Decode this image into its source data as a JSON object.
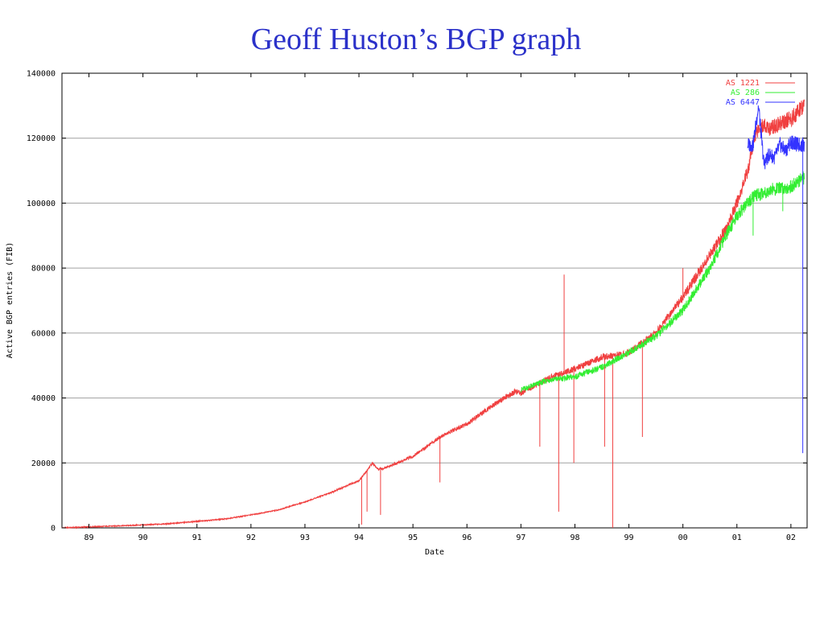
{
  "slide": {
    "title": "Geoff Huston’s BGP graph"
  },
  "colors": {
    "title": "#2b31c9",
    "as1221": "#f04040",
    "as286": "#33ee33",
    "as6447": "#3333ff",
    "grid": "#a0a0a0"
  },
  "chart_data": {
    "type": "line",
    "title": "",
    "xlabel": "Date",
    "ylabel": "Active BGP entries (FIB)",
    "ylim": [
      0,
      140000
    ],
    "xlim": [
      1988.5,
      2002.3
    ],
    "y_ticks": [
      "0",
      "20000",
      "40000",
      "60000",
      "80000",
      "100000",
      "120000",
      "140000"
    ],
    "x_ticks": [
      {
        "value": 1989,
        "label": "89"
      },
      {
        "value": 1990,
        "label": "90"
      },
      {
        "value": 1991,
        "label": "91"
      },
      {
        "value": 1992,
        "label": "92"
      },
      {
        "value": 1993,
        "label": "93"
      },
      {
        "value": 1994,
        "label": "94"
      },
      {
        "value": 1995,
        "label": "95"
      },
      {
        "value": 1996,
        "label": "96"
      },
      {
        "value": 1997,
        "label": "97"
      },
      {
        "value": 1998,
        "label": "98"
      },
      {
        "value": 1999,
        "label": "99"
      },
      {
        "value": 2000,
        "label": "00"
      },
      {
        "value": 2001,
        "label": "01"
      },
      {
        "value": 2002,
        "label": "02"
      }
    ],
    "grid": true,
    "legend_position": "top-right",
    "series": [
      {
        "name": "AS 1221",
        "color": "#f04040",
        "points": [
          [
            1988.5,
            0
          ],
          [
            1989.0,
            300
          ],
          [
            1989.5,
            600
          ],
          [
            1990.0,
            900
          ],
          [
            1990.5,
            1300
          ],
          [
            1991.0,
            2000
          ],
          [
            1991.5,
            2700
          ],
          [
            1992.0,
            4000
          ],
          [
            1992.5,
            5500
          ],
          [
            1993.0,
            8000
          ],
          [
            1993.5,
            11000
          ],
          [
            1994.0,
            14500
          ],
          [
            1994.1,
            16500
          ],
          [
            1994.25,
            20000
          ],
          [
            1994.35,
            18000
          ],
          [
            1994.5,
            18500
          ],
          [
            1995.0,
            22000
          ],
          [
            1995.5,
            28000
          ],
          [
            1996.0,
            32000
          ],
          [
            1996.5,
            38000
          ],
          [
            1996.9,
            42000
          ],
          [
            1997.0,
            41500
          ],
          [
            1997.5,
            46000
          ],
          [
            1998.0,
            49000
          ],
          [
            1998.5,
            52500
          ],
          [
            1998.9,
            53500
          ],
          [
            1999.0,
            54000
          ],
          [
            1999.3,
            57500
          ],
          [
            1999.5,
            60000
          ],
          [
            2000.0,
            71000
          ],
          [
            2000.5,
            84000
          ],
          [
            2000.8,
            92000
          ],
          [
            2001.0,
            100000
          ],
          [
            2001.2,
            110000
          ],
          [
            2001.35,
            122000
          ],
          [
            2001.45,
            124000
          ],
          [
            2001.6,
            123000
          ],
          [
            2001.8,
            124500
          ],
          [
            2002.0,
            126000
          ],
          [
            2002.25,
            130000
          ]
        ],
        "dips": [
          [
            1994.05,
            1000
          ],
          [
            1994.15,
            5000
          ],
          [
            1994.4,
            4000
          ],
          [
            1995.5,
            14000
          ],
          [
            1997.35,
            25000
          ],
          [
            1997.7,
            5000
          ],
          [
            1997.8,
            78000
          ],
          [
            1997.98,
            20000
          ],
          [
            1998.55,
            25000
          ],
          [
            1998.7,
            0
          ],
          [
            1999.25,
            28000
          ],
          [
            2000.0,
            80000
          ]
        ]
      },
      {
        "name": "AS 286",
        "color": "#33ee33",
        "points": [
          [
            1997.0,
            42500
          ],
          [
            1997.5,
            45500
          ],
          [
            1998.0,
            46500
          ],
          [
            1998.5,
            49500
          ],
          [
            1999.0,
            54000
          ],
          [
            1999.3,
            57000
          ],
          [
            1999.5,
            59000
          ],
          [
            2000.0,
            67000
          ],
          [
            2000.5,
            80000
          ],
          [
            2000.8,
            90000
          ],
          [
            2001.0,
            96000
          ],
          [
            2001.3,
            102000
          ],
          [
            2001.6,
            104000
          ],
          [
            2002.0,
            105000
          ],
          [
            2002.25,
            108000
          ]
        ],
        "dips": [
          [
            2001.3,
            90000
          ],
          [
            2001.85,
            97500
          ]
        ]
      },
      {
        "name": "AS 6447",
        "color": "#3333ff",
        "points": [
          [
            2001.2,
            118000
          ],
          [
            2001.3,
            118000
          ],
          [
            2001.4,
            130000
          ],
          [
            2001.5,
            112000
          ],
          [
            2001.6,
            115000
          ],
          [
            2001.7,
            114000
          ],
          [
            2001.8,
            118000
          ],
          [
            2001.9,
            116000
          ],
          [
            2002.0,
            119000
          ],
          [
            2002.1,
            118000
          ],
          [
            2002.25,
            118000
          ]
        ],
        "dips": [
          [
            2002.22,
            23000
          ]
        ]
      }
    ]
  }
}
